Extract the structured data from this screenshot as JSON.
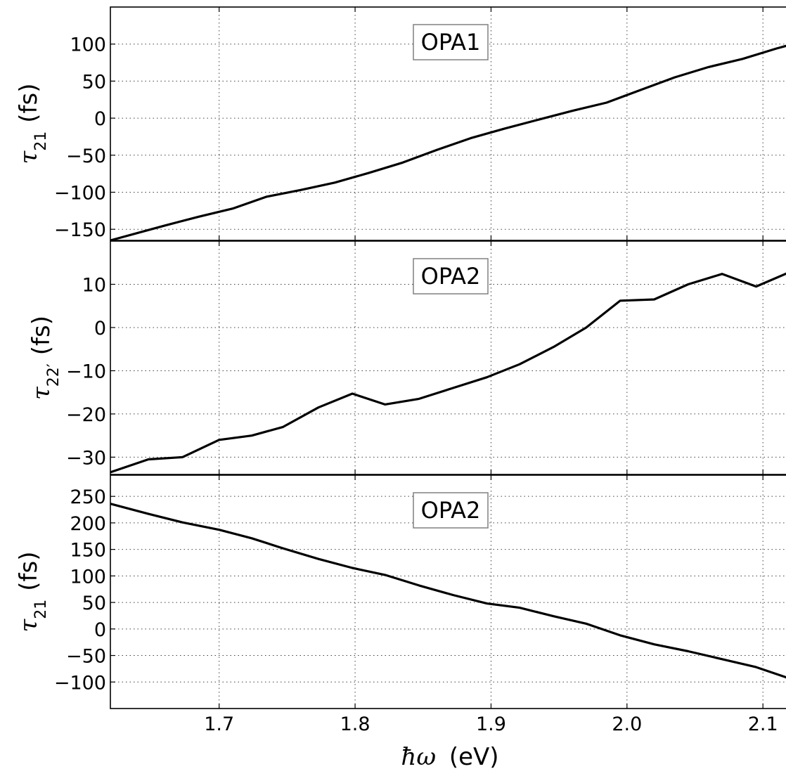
{
  "chart_data": {
    "type": "line",
    "shared_x": {
      "label_html": "ħω (eV)",
      "label_symbol": "ħω",
      "label_unit": "(eV)",
      "ticks": [
        1.7,
        1.8,
        1.9,
        2.0,
        2.1
      ],
      "tick_labels": [
        "1.7",
        "1.8",
        "1.9",
        "2.0",
        "2.1"
      ],
      "xlim": [
        1.62,
        2.118
      ]
    },
    "panels": [
      {
        "annotation": "OPA1",
        "ylabel": {
          "symbol": "τ",
          "sub": "21",
          "prime": false,
          "unit": "(fs)"
        },
        "ylim": [
          -165,
          150
        ],
        "yticks": [
          -150,
          -100,
          -50,
          0,
          50,
          100
        ],
        "ytick_labels": [
          "−150",
          "−100",
          "−50",
          "0",
          "50",
          "100"
        ],
        "grid": true,
        "series": [
          {
            "x": [
              1.62,
              1.65,
              1.66,
              1.685,
              1.71,
              1.735,
              1.76,
              1.785,
              1.81,
              1.835,
              1.86,
              1.885,
              1.91,
              1.935,
              1.96,
              1.985,
              2.01,
              2.035,
              2.06,
              2.085,
              2.11,
              2.118
            ],
            "y": [
              -165,
              -150,
              -145,
              -133,
              -122,
              -106,
              -97,
              -87,
              -74,
              -60,
              -43,
              -27,
              -14,
              -2,
              10,
              21,
              38,
              55,
              69,
              80,
              94,
              98
            ]
          }
        ]
      },
      {
        "annotation": "OPA2",
        "ylabel": {
          "symbol": "τ",
          "sub": "22",
          "prime": true,
          "unit": "(fs)"
        },
        "ylim": [
          -34,
          20
        ],
        "yticks": [
          -30,
          -20,
          -10,
          0,
          10
        ],
        "ytick_labels": [
          "−30",
          "−20",
          "−10",
          "0",
          "10"
        ],
        "grid": true,
        "series": [
          {
            "x": [
              1.62,
              1.648,
              1.673,
              1.7,
              1.724,
              1.747,
              1.773,
              1.798,
              1.822,
              1.847,
              1.872,
              1.897,
              1.921,
              1.946,
              1.97,
              1.995,
              2.02,
              2.045,
              2.07,
              2.095,
              2.118
            ],
            "y": [
              -33.5,
              -30.5,
              -30,
              -26,
              -25,
              -23,
              -18.5,
              -15.3,
              -17.8,
              -16.5,
              -14,
              -11.5,
              -8.5,
              -4.5,
              0,
              6.2,
              6.5,
              10,
              12.4,
              9.5,
              12.6
            ]
          }
        ]
      },
      {
        "annotation": "OPA2",
        "ylabel": {
          "symbol": "τ",
          "sub": "21",
          "prime": false,
          "unit": "(fs)"
        },
        "ylim": [
          -150,
          290
        ],
        "yticks": [
          -100,
          -50,
          0,
          50,
          100,
          150,
          200,
          250
        ],
        "ytick_labels": [
          "−100",
          "−50",
          "0",
          "50",
          "100",
          "150",
          "200",
          "250"
        ],
        "grid": true,
        "series": [
          {
            "x": [
              1.62,
              1.648,
              1.673,
              1.7,
              1.724,
              1.747,
              1.773,
              1.798,
              1.822,
              1.847,
              1.872,
              1.897,
              1.921,
              1.946,
              1.97,
              1.995,
              2.02,
              2.045,
              2.07,
              2.095,
              2.118
            ],
            "y": [
              236,
              217,
              201,
              187,
              171,
              152,
              132,
              115,
              102,
              82,
              64,
              48,
              40,
              24,
              10,
              -12,
              -29,
              -42,
              -57,
              -72,
              -92
            ]
          }
        ]
      }
    ]
  }
}
